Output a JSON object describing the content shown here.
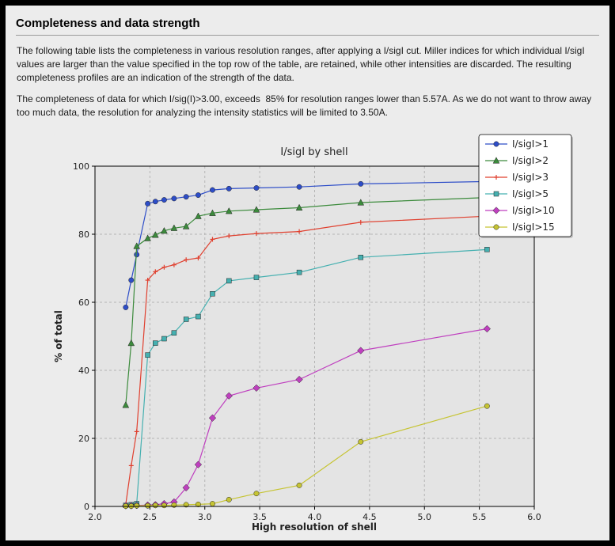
{
  "page": {
    "title": "Completeness and data strength",
    "paragraphs": [
      "The following table lists the completeness in various resolution ranges, after applying a I/sigI cut. Miller indices for which individual I/sigI values are larger than the value specified in the top row of the table, are retained, while other intensities are discarded. The resulting completeness profiles are an indication of the strength of the data.",
      "The completeness of data for which I/sig(I)>3.00, exceeds  85% for resolution ranges lower than 5.57A. As we do not want to throw away too much data, the resolution for analyzing the intensity statistics will be limited to 3.50A."
    ]
  },
  "chart_data": {
    "type": "line",
    "title": "I/sigI by shell",
    "xlabel": "High resolution of shell",
    "ylabel": "% of total",
    "xlim": [
      2.0,
      6.0
    ],
    "ylim": [
      0,
      100
    ],
    "grid": true,
    "legend_position": "top-right",
    "plot_bg": "#e4e4e4",
    "grid_color": "#b5b5b5",
    "frame_color": "#000000",
    "xtick_values": [
      2.0,
      2.5,
      3.0,
      3.5,
      4.0,
      4.5,
      5.0,
      5.5,
      6.0
    ],
    "xtick_labels": [
      "2.0",
      "2.5",
      "3.0",
      "3.5",
      "4.0",
      "4.5",
      "5.0",
      "5.5",
      "6.0"
    ],
    "ytick_values": [
      0,
      20,
      40,
      60,
      80,
      100
    ],
    "ytick_labels": [
      "0",
      "20",
      "40",
      "60",
      "80",
      "100"
    ],
    "x": [
      2.28,
      2.33,
      2.38,
      2.48,
      2.55,
      2.63,
      2.72,
      2.83,
      2.94,
      3.07,
      3.22,
      3.47,
      3.86,
      4.42,
      5.57
    ],
    "series": [
      {
        "name": "I/sigI>1",
        "color": "#2d4dc8",
        "marker": "circle",
        "values": [
          58.5,
          66.5,
          74.0,
          89.0,
          89.6,
          90.1,
          90.5,
          91.0,
          91.5,
          93.0,
          93.4,
          93.6,
          93.9,
          94.8,
          95.5
        ]
      },
      {
        "name": "I/sigI>2",
        "color": "#3c8b3c",
        "marker": "triangle",
        "values": [
          29.8,
          48.0,
          76.5,
          78.8,
          79.8,
          81.0,
          81.8,
          82.3,
          85.3,
          86.2,
          86.8,
          87.2,
          87.8,
          89.3,
          90.8
        ]
      },
      {
        "name": "I/sigI>3",
        "color": "#e0402f",
        "marker": "plus",
        "values": [
          0.5,
          12.0,
          22.0,
          66.5,
          69.0,
          70.3,
          71.0,
          72.5,
          73.0,
          78.5,
          79.5,
          80.2,
          80.8,
          83.5,
          85.3
        ]
      },
      {
        "name": "I/sigI>5",
        "color": "#45b0b0",
        "marker": "square",
        "values": [
          0.3,
          0.5,
          0.8,
          44.5,
          48.0,
          49.3,
          51.0,
          55.0,
          55.8,
          62.5,
          66.3,
          67.3,
          68.8,
          73.2,
          75.5
        ]
      },
      {
        "name": "I/sigI>10",
        "color": "#bf3fbf",
        "marker": "diamond",
        "values": [
          0.2,
          0.2,
          0.3,
          0.4,
          0.5,
          0.8,
          1.3,
          5.5,
          12.3,
          26.0,
          32.5,
          34.8,
          37.3,
          45.8,
          52.2
        ]
      },
      {
        "name": "I/sigI>15",
        "color": "#c6c433",
        "marker": "circle",
        "values": [
          0.1,
          0.1,
          0.2,
          0.2,
          0.3,
          0.3,
          0.4,
          0.5,
          0.6,
          0.8,
          2.0,
          3.8,
          6.2,
          19.0,
          29.5
        ]
      }
    ]
  }
}
